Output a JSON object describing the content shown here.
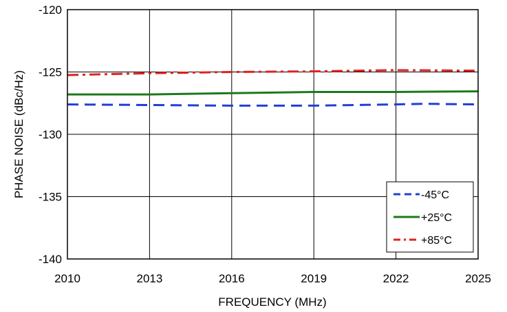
{
  "chart_data": {
    "type": "line",
    "xlabel": "FREQUENCY (MHz)",
    "ylabel": "PHASE NOISE  (dBc/Hz)",
    "xlim": [
      2010,
      2025
    ],
    "ylim": [
      -140,
      -120
    ],
    "xticks": [
      2010,
      2013,
      2016,
      2019,
      2022,
      2025
    ],
    "yticks": [
      -140,
      -135,
      -130,
      -125,
      -120
    ],
    "grid": true,
    "legend_position": "bottom-right",
    "series": [
      {
        "name": "-45°C",
        "color": "#1f3fd6",
        "dash": "dashed",
        "x": [
          2010,
          2013,
          2016,
          2019,
          2022,
          2023,
          2025
        ],
        "y": [
          -127.6,
          -127.65,
          -127.7,
          -127.7,
          -127.6,
          -127.55,
          -127.6
        ]
      },
      {
        "name": "+25°C",
        "color": "#1a7a1a",
        "dash": "solid",
        "x": [
          2010,
          2013,
          2016,
          2019,
          2022,
          2025
        ],
        "y": [
          -126.8,
          -126.8,
          -126.7,
          -126.6,
          -126.6,
          -126.55
        ]
      },
      {
        "name": "+85°C",
        "color": "#e02020",
        "dash": "dashdot",
        "x": [
          2010,
          2013,
          2016,
          2019,
          2022,
          2025
        ],
        "y": [
          -125.25,
          -125.1,
          -125.0,
          -124.95,
          -124.85,
          -124.9
        ]
      }
    ]
  }
}
